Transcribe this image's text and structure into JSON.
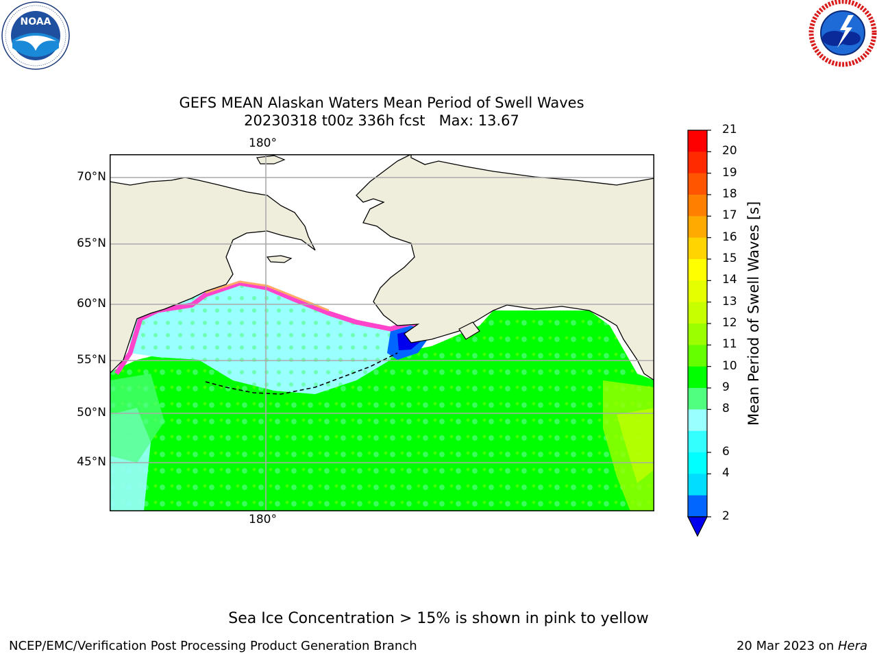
{
  "title": {
    "line1": "GEFS MEAN Alaskan Waters Mean Period of Swell Waves",
    "line2": "20230318 t00z 336h fcst   Max: 13.67"
  },
  "logos": {
    "left": {
      "name": "NOAA",
      "ring_text": "NATIONAL OCEANIC AND ATMOSPHERIC ADMINISTRATION · U.S. DEPARTMENT OF COMMERCE"
    },
    "right": {
      "ring_text": "NATIONAL WEATHER SERVICE"
    }
  },
  "map": {
    "lon_top_label": "180°",
    "lon_bottom_label": "180°",
    "lat_labels": [
      "70°N",
      "65°N",
      "60°N",
      "55°N",
      "50°N",
      "45°N"
    ]
  },
  "colorbar": {
    "title": "Mean Period of Swell Waves [s]",
    "tick_labels": [
      "21",
      "20",
      "19",
      "18",
      "17",
      "16",
      "15",
      "14",
      "13",
      "12",
      "11",
      "10",
      "9",
      "8",
      "6",
      "4",
      "2"
    ],
    "colors_top_to_bottom": [
      "#ff0000",
      "#ff2a00",
      "#ff5500",
      "#ff7f00",
      "#ffaa00",
      "#ffd400",
      "#ffff00",
      "#e6ff00",
      "#c8ff00",
      "#9bff00",
      "#66ff00",
      "#00ff00",
      "#50ff80",
      "#99ffff",
      "#33ffff",
      "#00ffff",
      "#00ddff",
      "#0066ff"
    ],
    "under_color": "#0000ee"
  },
  "note": "Sea Ice Concentration > 15% is shown in pink to yellow",
  "footer": {
    "left": "NCEP/EMC/Verification Post Processing Product Generation Branch",
    "right_prefix": "20 Mar 2023 on ",
    "right_italic": "Hera"
  }
}
